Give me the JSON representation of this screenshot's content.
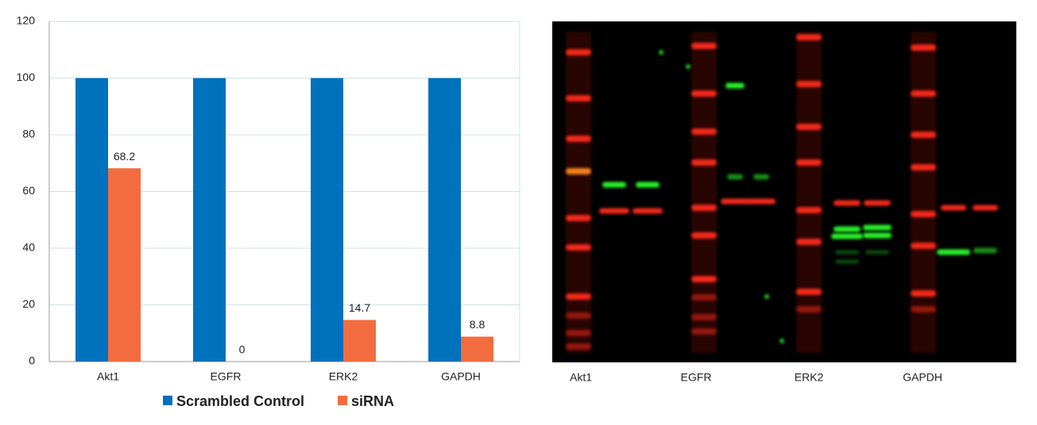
{
  "chart_data": {
    "type": "bar",
    "categories": [
      "Akt1",
      "EGFR",
      "ERK2",
      "GAPDH"
    ],
    "series": [
      {
        "name": "Scrambled Control",
        "color": "#0071bc",
        "values": [
          100,
          100,
          100,
          100
        ]
      },
      {
        "name": "siRNA",
        "color": "#f26c40",
        "values": [
          68.2,
          0,
          14.7,
          8.8
        ]
      }
    ],
    "ylim": [
      0,
      120
    ],
    "yticks": [
      0,
      20,
      40,
      60,
      80,
      100,
      120
    ],
    "grid": true,
    "legend": "bottom"
  },
  "blot": {
    "lane_labels": [
      "Akt1",
      "EGFR",
      "ERK2",
      "GAPDH"
    ]
  }
}
